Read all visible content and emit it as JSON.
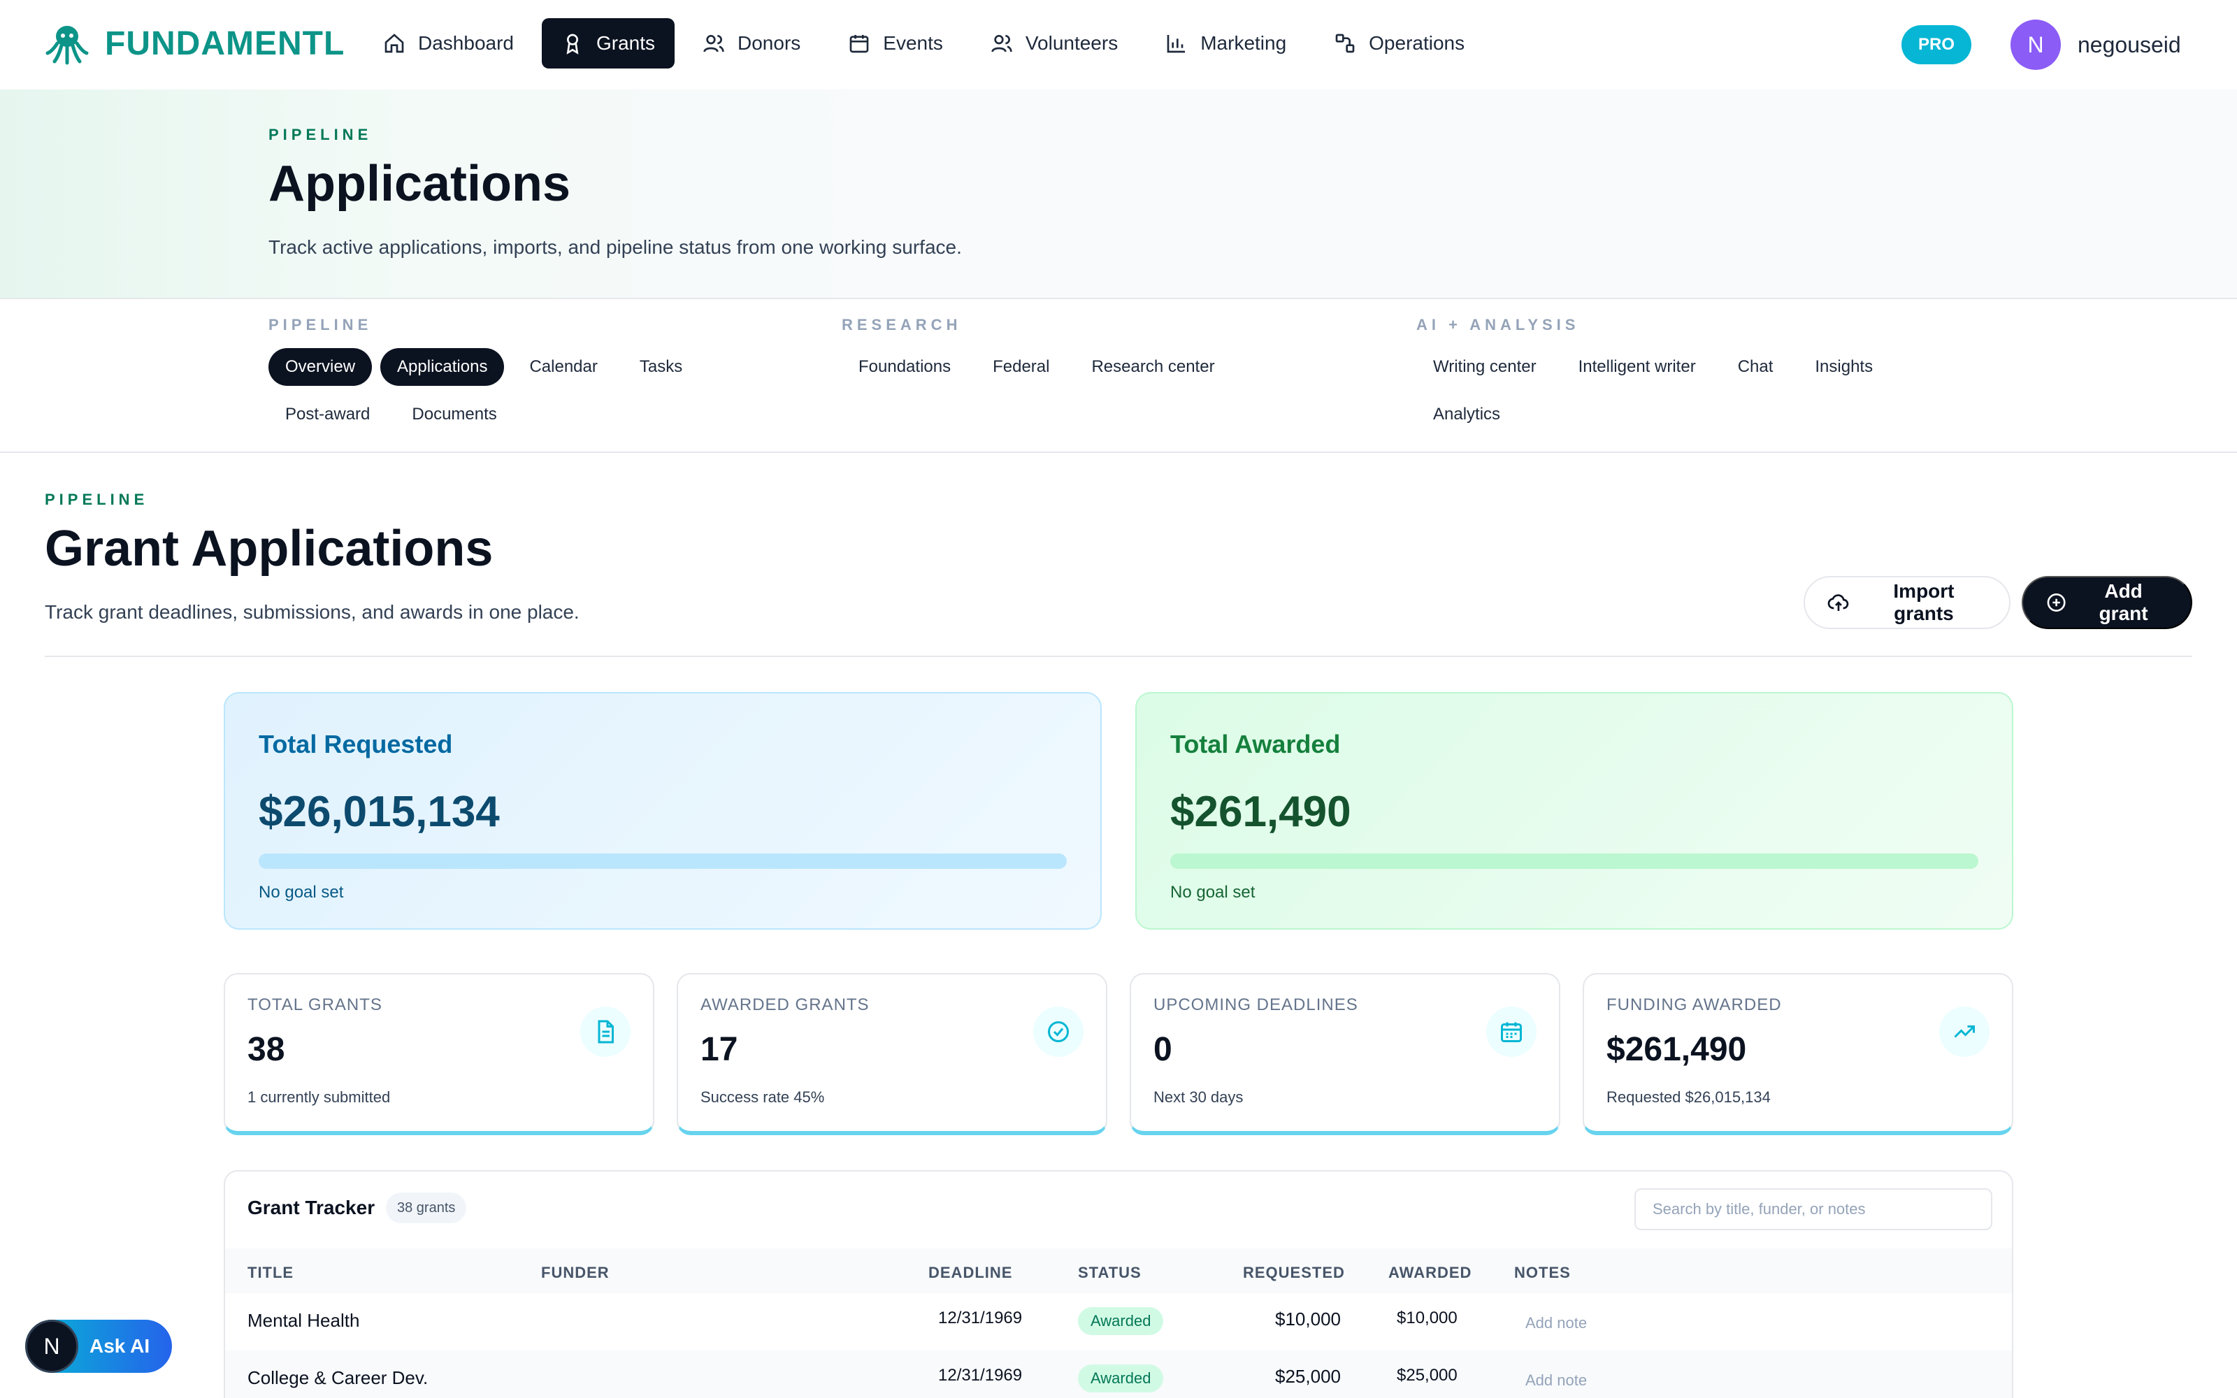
{
  "brand": {
    "name": "FUNDAMENTL",
    "accent": "#0d9488"
  },
  "nav": {
    "items": [
      {
        "label": "Dashboard",
        "icon": "home-icon",
        "active": false
      },
      {
        "label": "Grants",
        "icon": "award-icon",
        "active": true
      },
      {
        "label": "Donors",
        "icon": "users-icon",
        "active": false
      },
      {
        "label": "Events",
        "icon": "calendar-icon",
        "active": false
      },
      {
        "label": "Volunteers",
        "icon": "users-icon",
        "active": false
      },
      {
        "label": "Marketing",
        "icon": "chart-icon",
        "active": false
      },
      {
        "label": "Operations",
        "icon": "workflow-icon",
        "active": false
      }
    ],
    "pro_label": "PRO",
    "user": {
      "initial": "N",
      "name": "negouseid"
    }
  },
  "hero": {
    "eyebrow": "PIPELINE",
    "title": "Applications",
    "subtitle": "Track active applications, imports, and pipeline status from one working surface."
  },
  "subnav": {
    "groups": [
      {
        "label": "PIPELINE",
        "items": [
          "Overview",
          "Applications",
          "Calendar",
          "Tasks",
          "Post-award",
          "Documents"
        ]
      },
      {
        "label": "RESEARCH",
        "items": [
          "Foundations",
          "Federal",
          "Research center"
        ]
      },
      {
        "label": "AI + ANALYSIS",
        "items": [
          "Writing center",
          "Intelligent writer",
          "Chat",
          "Insights",
          "Analytics"
        ]
      }
    ]
  },
  "page": {
    "eyebrow": "PIPELINE",
    "title": "Grant Applications",
    "subtitle": "Track grant deadlines, submissions, and awards in one place.",
    "import_label": "Import grants",
    "add_label": "Add grant"
  },
  "summary": {
    "requested": {
      "title": "Total Requested",
      "value": "$26,015,134",
      "note": "No goal set",
      "progress": 0
    },
    "awarded": {
      "title": "Total Awarded",
      "value": "$261,490",
      "note": "No goal set",
      "progress": 0
    }
  },
  "stats": [
    {
      "label": "TOTAL GRANTS",
      "value": "38",
      "note": "1 currently submitted",
      "icon": "document-icon"
    },
    {
      "label": "AWARDED GRANTS",
      "value": "17",
      "note": "Success rate 45%",
      "icon": "check-circle-icon"
    },
    {
      "label": "UPCOMING DEADLINES",
      "value": "0",
      "note": "Next 30 days",
      "icon": "calendar-icon"
    },
    {
      "label": "FUNDING AWARDED",
      "value": "$261,490",
      "note": "Requested $26,015,134",
      "icon": "trending-up-icon"
    }
  ],
  "tracker": {
    "title": "Grant Tracker",
    "count": "38 grants",
    "search_placeholder": "Search by title, funder, or notes",
    "columns": [
      "TITLE",
      "FUNDER",
      "DEADLINE",
      "STATUS",
      "REQUESTED",
      "AWARDED",
      "NOTES"
    ],
    "rows": [
      {
        "title": "Mental Health",
        "funder": "",
        "deadline": "12/31/1969",
        "status": "Awarded",
        "requested": "$10,000",
        "awarded": "$10,000",
        "notes": "Add note"
      },
      {
        "title": "College & Career Dev.",
        "funder": "",
        "deadline": "12/31/1969",
        "status": "Awarded",
        "requested": "$25,000",
        "awarded": "$25,000",
        "notes": "Add note"
      }
    ]
  },
  "ask_ai": {
    "initial": "N",
    "label": "Ask AI"
  }
}
